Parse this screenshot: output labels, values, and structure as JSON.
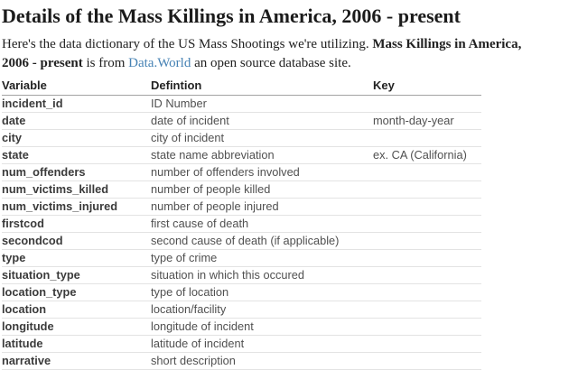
{
  "page": {
    "title": "Details of the Mass Killings in America, 2006 - present"
  },
  "intro": {
    "text_before": "Here's the data dictionary of the US Mass Shootings we're utilizing. ",
    "dataset_title": "Mass Killings in America, 2006 - present",
    "text_middle": " is from ",
    "link_text": "Data.World",
    "text_after": " an open source database site."
  },
  "colors": {
    "link": "#4682b4",
    "heading_text": "#1b1b1b",
    "body_text": "#212121",
    "table_header_border": "#a3a3a3",
    "table_row_border": "#e3e3e3",
    "table_variable_text": "#3b3b3b",
    "table_cell_text": "#505050"
  },
  "table": {
    "columns": [
      "Variable",
      "Defintion",
      "Key"
    ],
    "rows": [
      {
        "variable": "incident_id",
        "definition": "ID Number",
        "key": ""
      },
      {
        "variable": "date",
        "definition": "date of incident",
        "key": "month-day-year"
      },
      {
        "variable": "city",
        "definition": "city of incident",
        "key": ""
      },
      {
        "variable": "state",
        "definition": "state name abbreviation",
        "key": "ex. CA (California)"
      },
      {
        "variable": "num_offenders",
        "definition": "number of offenders involved",
        "key": ""
      },
      {
        "variable": "num_victims_killed",
        "definition": "number of people killed",
        "key": ""
      },
      {
        "variable": "num_victims_injured",
        "definition": "number of people injured",
        "key": ""
      },
      {
        "variable": "firstcod",
        "definition": "first cause of death",
        "key": ""
      },
      {
        "variable": "secondcod",
        "definition": "second cause of death (if applicable)",
        "key": ""
      },
      {
        "variable": "type",
        "definition": "type of crime",
        "key": ""
      },
      {
        "variable": "situation_type",
        "definition": "situation in which this occured",
        "key": ""
      },
      {
        "variable": "location_type",
        "definition": "type of location",
        "key": ""
      },
      {
        "variable": "location",
        "definition": "location/facility",
        "key": ""
      },
      {
        "variable": "longitude",
        "definition": "longitude of incident",
        "key": ""
      },
      {
        "variable": "latitude",
        "definition": "latitude of incident",
        "key": ""
      },
      {
        "variable": "narrative",
        "definition": "short description",
        "key": ""
      }
    ]
  }
}
